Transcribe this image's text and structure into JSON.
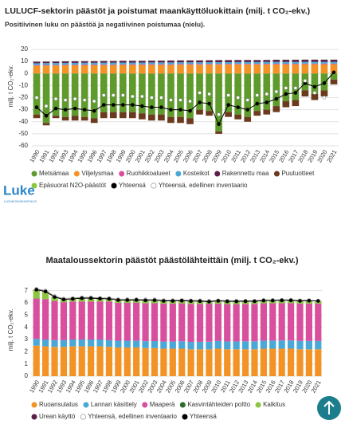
{
  "logo": {
    "name": "Luke",
    "subtitle": "LUONNONVARAKESKUS"
  },
  "chart_data": [
    {
      "type": "bar",
      "title": "LULUCF-sektorin päästöt ja poistumat maankäyttöluokittain (milj. t CO₂-ekv.)",
      "subtitle": "Positiivinen luku on päästöä ja negatiivinen poistumaa (nielu).",
      "y_label": "milj. t CO₂-ekv.",
      "stacked": true,
      "grid": true,
      "categories": [
        "1990",
        "1991",
        "1992",
        "1993",
        "1994",
        "1995",
        "1996",
        "1997",
        "1998",
        "1999",
        "2000",
        "2001",
        "2002",
        "2003",
        "2004",
        "2005",
        "2006",
        "2007",
        "2008",
        "2009",
        "2010",
        "2011",
        "2012",
        "2013",
        "2014",
        "2015",
        "2016",
        "2017",
        "2018",
        "2019",
        "2020",
        "2021"
      ],
      "ylim": [
        -60,
        20
      ],
      "yticks": [
        20,
        10,
        0,
        -10,
        -20,
        -30,
        -40,
        -50,
        -60
      ],
      "series": [
        {
          "name": "Metsämaa",
          "color": "#5e9b2c",
          "values": [
            -34,
            -41,
            -35,
            -36,
            -35,
            -36,
            -37,
            -32,
            -32,
            -32,
            -32,
            -33,
            -34,
            -34,
            -36,
            -36,
            -37,
            -30,
            -31,
            -48,
            -32,
            -34,
            -36,
            -31,
            -30,
            -27,
            -23,
            -22,
            -14,
            -17,
            -14,
            -5
          ]
        },
        {
          "name": "Viljelysmaa",
          "color": "#f39325",
          "values": [
            6.5,
            6.6,
            6.7,
            6.8,
            6.8,
            6.9,
            6.9,
            7,
            7,
            7.1,
            7.1,
            7.1,
            7.2,
            7.2,
            7.2,
            7.3,
            7.3,
            7.3,
            7.4,
            7.4,
            7.4,
            7.5,
            7.5,
            7.5,
            7.6,
            7.6,
            7.6,
            7.6,
            7.7,
            7.7,
            7.7,
            7.7
          ]
        },
        {
          "name": "Ruohikkoalueet",
          "color": "#d84f9e",
          "values": [
            0.5,
            0.5,
            0.5,
            0.5,
            0.5,
            0.5,
            0.5,
            0.5,
            0.5,
            0.5,
            0.5,
            0.5,
            0.5,
            0.5,
            0.5,
            0.5,
            0.5,
            0.5,
            0.5,
            0.5,
            0.5,
            0.5,
            0.5,
            0.5,
            0.5,
            0.5,
            0.5,
            0.5,
            0.5,
            0.5,
            0.5,
            0.5
          ]
        },
        {
          "name": "Kosteikot",
          "color": "#4aa8d8",
          "values": [
            1.5,
            1.5,
            1.5,
            1.5,
            1.5,
            1.5,
            1.5,
            1.5,
            1.5,
            1.5,
            1.5,
            1.5,
            1.5,
            1.5,
            1.5,
            1.5,
            1.5,
            1.5,
            1.5,
            1.5,
            1.5,
            1.5,
            1.5,
            1.5,
            1.5,
            1.5,
            1.5,
            1.5,
            1.5,
            1.5,
            1.5,
            1.5
          ]
        },
        {
          "name": "Rakennettu maa",
          "color": "#5b1f4a",
          "values": [
            1.3,
            1.3,
            1.3,
            1.3,
            1.4,
            1.4,
            1.4,
            1.4,
            1.4,
            1.5,
            1.5,
            1.5,
            1.5,
            1.5,
            1.6,
            1.6,
            1.6,
            1.6,
            1.6,
            1.7,
            1.7,
            1.7,
            1.7,
            1.7,
            1.7,
            1.8,
            1.8,
            1.8,
            1.8,
            1.8,
            1.8,
            1.8
          ]
        },
        {
          "name": "Puutuotteet",
          "color": "#6b3a1e",
          "values": [
            -3,
            -2,
            -2,
            -3,
            -4,
            -3,
            -4,
            -5,
            -5,
            -5,
            -5,
            -5,
            -5,
            -5,
            -5,
            -5,
            -5,
            -4,
            -4,
            -2,
            -4,
            -4,
            -4,
            -4,
            -4,
            -5,
            -5,
            -5,
            -5,
            -5,
            -5,
            -4
          ]
        },
        {
          "name": "Epäsuorat N2O-päästöt",
          "color": "#8cc63f",
          "values": [
            0.1,
            0.1,
            0.1,
            0.1,
            0.1,
            0.1,
            0.1,
            0.1,
            0.1,
            0.1,
            0.1,
            0.1,
            0.1,
            0.1,
            0.1,
            0.1,
            0.1,
            0.1,
            0.1,
            0.1,
            0.1,
            0.1,
            0.1,
            0.1,
            0.1,
            0.1,
            0.1,
            0.1,
            0.1,
            0.1,
            0.1,
            0.1
          ]
        },
        {
          "name": "Yhteensä",
          "type": "line",
          "connect": true,
          "color": "#000000",
          "values": [
            -28,
            -35,
            -29,
            -30,
            -29,
            -30,
            -31,
            -26,
            -26,
            -26,
            -26,
            -27,
            -28,
            -28,
            -30,
            -30,
            -31,
            -24,
            -25,
            -42,
            -26,
            -28,
            -30,
            -25,
            -24,
            -21,
            -17,
            -16,
            -8,
            -11,
            -8,
            1
          ]
        },
        {
          "name": "Yhteensä, edellinen inventaario",
          "type": "line",
          "connect": false,
          "color": "#ffffff",
          "values": [
            -20,
            -27,
            -21,
            -22,
            -21,
            -22,
            -23,
            -18,
            -18,
            -18,
            -19,
            -19,
            -20,
            -20,
            -22,
            -22,
            -23,
            -16,
            -17,
            -34,
            -18,
            -20,
            -22,
            -18,
            -17,
            -15,
            -12,
            -12,
            -6,
            -16,
            -20,
            null
          ]
        }
      ]
    },
    {
      "type": "bar",
      "title": "Maataloussektorin päästöt päästölähteittäin (milj. t CO₂-ekv.)",
      "y_label": "milj. t CO₂-ekv.",
      "stacked": true,
      "grid": true,
      "categories": [
        "1990",
        "1991",
        "1992",
        "1993",
        "1994",
        "1995",
        "1996",
        "1997",
        "1998",
        "1999",
        "2000",
        "2001",
        "2002",
        "2003",
        "2004",
        "2005",
        "2006",
        "2007",
        "2008",
        "2009",
        "2010",
        "2011",
        "2012",
        "2013",
        "2014",
        "2015",
        "2016",
        "2017",
        "2018",
        "2019",
        "2020",
        "2021"
      ],
      "ylim": [
        0,
        7.5
      ],
      "yticks": [
        0,
        1,
        2,
        3,
        4,
        5,
        6,
        7
      ],
      "series": [
        {
          "name": "Ruoansulatus",
          "color": "#f39325",
          "values": [
            2.5,
            2.45,
            2.4,
            2.4,
            2.45,
            2.45,
            2.45,
            2.45,
            2.4,
            2.35,
            2.35,
            2.35,
            2.3,
            2.3,
            2.25,
            2.25,
            2.25,
            2.2,
            2.2,
            2.2,
            2.25,
            2.2,
            2.2,
            2.2,
            2.2,
            2.25,
            2.25,
            2.25,
            2.25,
            2.2,
            2.2,
            2.2
          ]
        },
        {
          "name": "Lannan käsittely",
          "color": "#4aa8d8",
          "values": [
            0.55,
            0.55,
            0.55,
            0.55,
            0.55,
            0.55,
            0.55,
            0.55,
            0.55,
            0.55,
            0.55,
            0.56,
            0.56,
            0.57,
            0.58,
            0.58,
            0.6,
            0.6,
            0.61,
            0.62,
            0.63,
            0.64,
            0.64,
            0.65,
            0.65,
            0.66,
            0.66,
            0.67,
            0.67,
            0.68,
            0.68,
            0.68
          ]
        },
        {
          "name": "Maaperä",
          "color": "#d84f9e",
          "values": [
            3.3,
            3.3,
            3.2,
            3.1,
            3.1,
            3.1,
            3.1,
            3.1,
            3.15,
            3.1,
            3.1,
            3.1,
            3.1,
            3.1,
            3.1,
            3.1,
            3.1,
            3.1,
            3.1,
            3.1,
            3.05,
            3.05,
            3.05,
            3.05,
            3.05,
            3.05,
            3.05,
            3.05,
            3.05,
            3.05,
            3.05,
            3.05
          ]
        },
        {
          "name": "Kasvintähteiden poltto",
          "color": "#2e6b2e",
          "values": [
            0.01,
            0.01,
            0.01,
            0.01,
            0.01,
            0.01,
            0.01,
            0.01,
            0.01,
            0.01,
            0.01,
            0.01,
            0.01,
            0.01,
            0.01,
            0.01,
            0.01,
            0.01,
            0.01,
            0.01,
            0.01,
            0.01,
            0.01,
            0.01,
            0.01,
            0.01,
            0.01,
            0.01,
            0.01,
            0.01,
            0.01,
            0.01
          ]
        },
        {
          "name": "Kalkitus",
          "color": "#8cc63f",
          "values": [
            0.7,
            0.6,
            0.3,
            0.2,
            0.2,
            0.25,
            0.25,
            0.22,
            0.2,
            0.2,
            0.2,
            0.2,
            0.22,
            0.22,
            0.2,
            0.2,
            0.2,
            0.22,
            0.2,
            0.15,
            0.2,
            0.2,
            0.2,
            0.2,
            0.2,
            0.2,
            0.2,
            0.2,
            0.2,
            0.2,
            0.22,
            0.2
          ]
        },
        {
          "name": "Urean käyttö",
          "color": "#5b1f4a",
          "values": [
            0.02,
            0.02,
            0.02,
            0.02,
            0.02,
            0.02,
            0.02,
            0.02,
            0.02,
            0.02,
            0.02,
            0.02,
            0.02,
            0.02,
            0.02,
            0.02,
            0.02,
            0.02,
            0.02,
            0.02,
            0.02,
            0.02,
            0.02,
            0.02,
            0.02,
            0.02,
            0.02,
            0.02,
            0.02,
            0.02,
            0.02,
            0.02
          ]
        },
        {
          "name": "Yhteensä, edellinen inventaario",
          "type": "line",
          "connect": true,
          "color": "#ffffff",
          "values": [
            7.15,
            7.0,
            6.55,
            6.35,
            6.4,
            6.45,
            6.45,
            6.4,
            6.4,
            6.3,
            6.3,
            6.3,
            6.28,
            6.28,
            6.22,
            6.22,
            6.24,
            6.2,
            6.2,
            6.16,
            6.2,
            6.18,
            6.18,
            6.18,
            6.18,
            6.24,
            6.24,
            6.25,
            6.25,
            6.2,
            6.22,
            null
          ]
        },
        {
          "name": "Yhteensä",
          "type": "line",
          "connect": true,
          "color": "#000000",
          "values": [
            7.08,
            6.93,
            6.48,
            6.28,
            6.33,
            6.38,
            6.38,
            6.35,
            6.33,
            6.23,
            6.23,
            6.24,
            6.21,
            6.22,
            6.16,
            6.16,
            6.18,
            6.15,
            6.14,
            6.1,
            6.16,
            6.12,
            6.12,
            6.13,
            6.13,
            6.19,
            6.19,
            6.2,
            6.2,
            6.16,
            6.18,
            6.16
          ]
        }
      ]
    }
  ]
}
